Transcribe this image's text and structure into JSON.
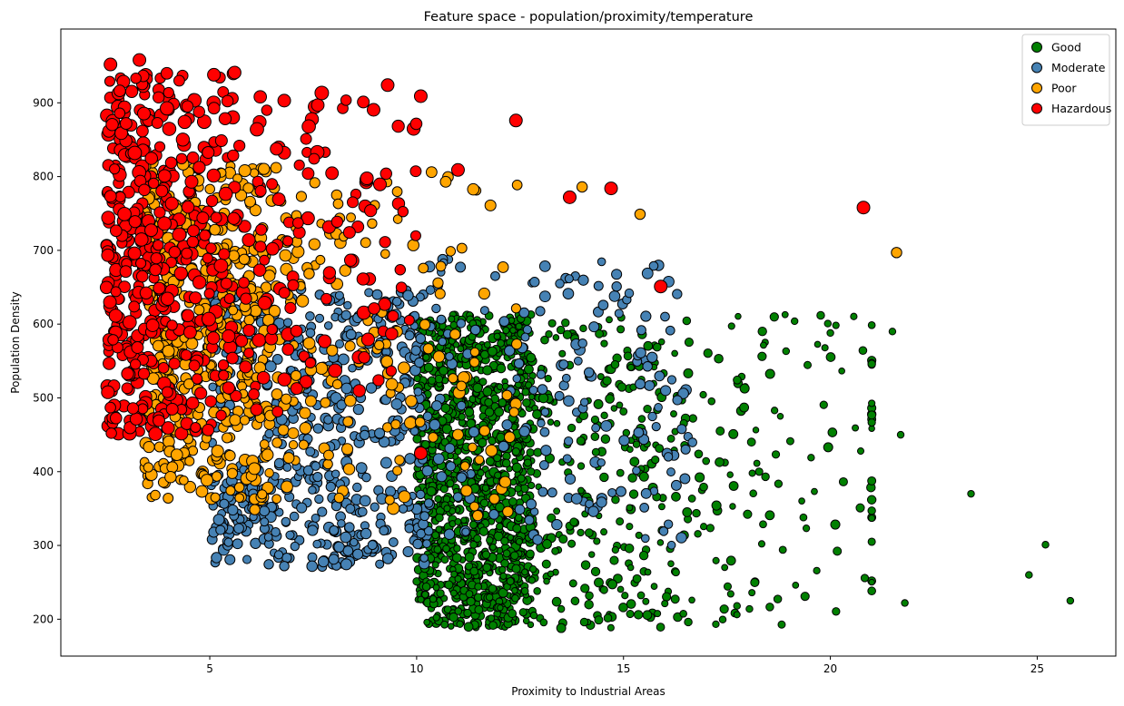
{
  "chart_data": {
    "type": "scatter",
    "title": "Feature space - population/proximity/temperature",
    "xlabel": "Proximity to Industrial Areas",
    "ylabel": "Population Density",
    "xlim": [
      1.4,
      26.9
    ],
    "ylim": [
      150,
      1000
    ],
    "xticks": [
      5,
      10,
      15,
      20,
      25
    ],
    "yticks": [
      200,
      300,
      400,
      500,
      600,
      700,
      800,
      900
    ],
    "grid": false,
    "legend_position": "top-right",
    "marker_size_encodes": "temperature",
    "series": [
      {
        "name": "Good",
        "color": "#008000",
        "seed": 11,
        "count": 1600,
        "generator": "good"
      },
      {
        "name": "Moderate",
        "color": "#4682b4",
        "seed": 23,
        "count": 750,
        "generator": "moderate"
      },
      {
        "name": "Poor",
        "color": "#ffa500",
        "seed": 37,
        "count": 640,
        "generator": "poor"
      },
      {
        "name": "Hazardous",
        "color": "#ff0000",
        "seed": 53,
        "count": 560,
        "generator": "hazardous"
      }
    ],
    "notable_points": [
      {
        "series": "Good",
        "x": 23.4,
        "y": 370
      },
      {
        "series": "Good",
        "x": 25.2,
        "y": 301
      },
      {
        "series": "Good",
        "x": 24.8,
        "y": 260
      },
      {
        "series": "Good",
        "x": 25.8,
        "y": 225
      },
      {
        "series": "Good",
        "x": 21.8,
        "y": 222
      },
      {
        "series": "Good",
        "x": 21.7,
        "y": 450
      },
      {
        "series": "Good",
        "x": 21.5,
        "y": 590
      },
      {
        "series": "Good",
        "x": 20.0,
        "y": 588
      },
      {
        "series": "Hazardous",
        "x": 20.8,
        "y": 758
      },
      {
        "series": "Poor",
        "x": 21.6,
        "y": 697
      },
      {
        "series": "Hazardous",
        "x": 15.9,
        "y": 651
      },
      {
        "series": "Hazardous",
        "x": 14.7,
        "y": 784
      },
      {
        "series": "Hazardous",
        "x": 13.7,
        "y": 772
      },
      {
        "series": "Poor",
        "x": 14.0,
        "y": 786
      },
      {
        "series": "Poor",
        "x": 15.4,
        "y": 749
      },
      {
        "series": "Hazardous",
        "x": 12.4,
        "y": 876
      },
      {
        "series": "Hazardous",
        "x": 10.1,
        "y": 909
      },
      {
        "series": "Hazardous",
        "x": 9.3,
        "y": 924
      },
      {
        "series": "Hazardous",
        "x": 11.0,
        "y": 809
      },
      {
        "series": "Hazardous",
        "x": 2.6,
        "y": 952
      },
      {
        "series": "Hazardous",
        "x": 3.3,
        "y": 958
      },
      {
        "series": "Hazardous",
        "x": 5.1,
        "y": 938
      },
      {
        "series": "Hazardous",
        "x": 5.6,
        "y": 941
      },
      {
        "series": "Hazardous",
        "x": 6.8,
        "y": 903
      },
      {
        "series": "Hazardous",
        "x": 10.1,
        "y": 425
      }
    ]
  }
}
